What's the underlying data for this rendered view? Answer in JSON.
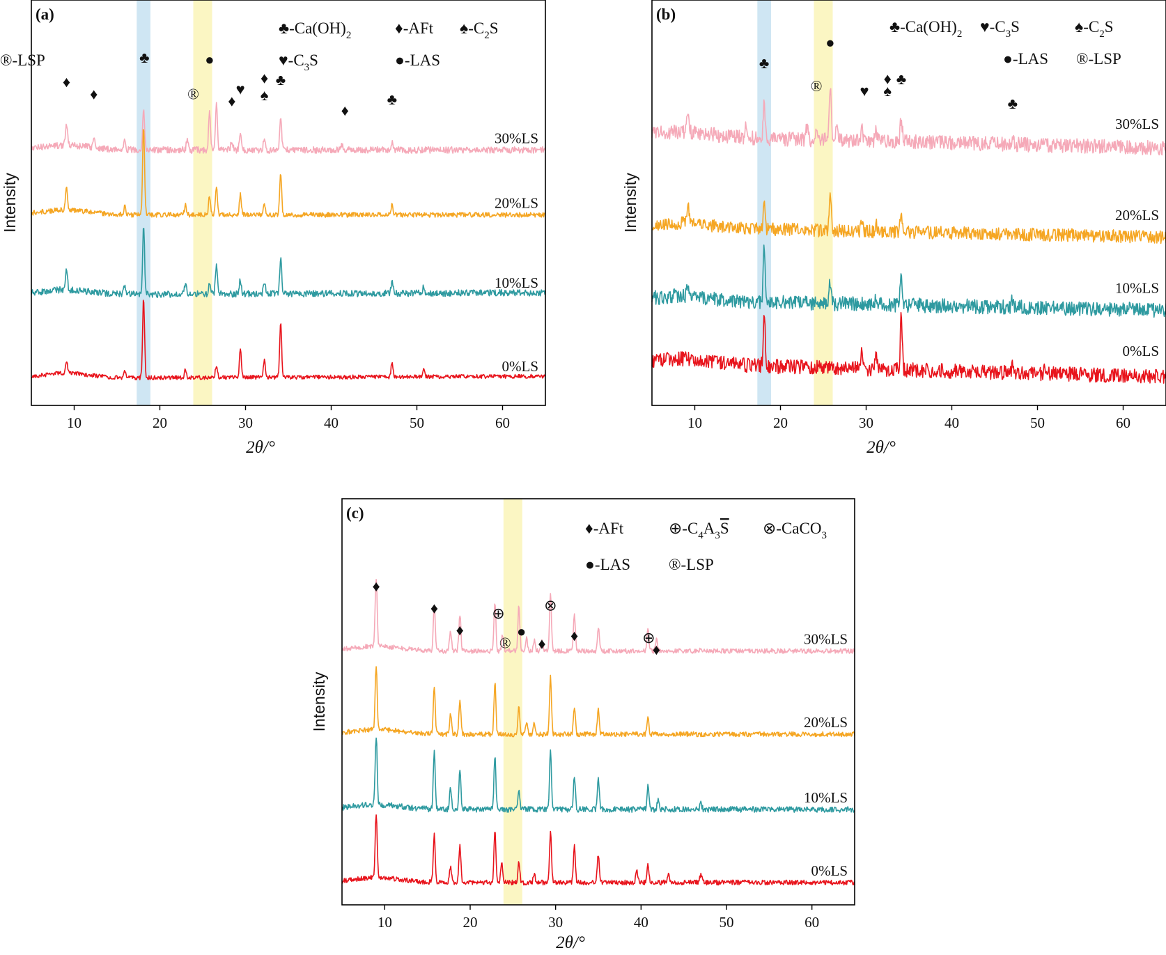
{
  "chart_data": [
    {
      "type": "line",
      "panel_label": "(a)",
      "xlabel": "2θ/°",
      "ylabel": "Intensity",
      "xlim": [
        5,
        65
      ],
      "x_ticks": [
        "10",
        "20",
        "30",
        "40",
        "50",
        "60"
      ],
      "highlight_bands": [
        {
          "range": [
            17.3,
            18.9
          ],
          "color": "#cfe6f3"
        },
        {
          "range": [
            23.9,
            26.1
          ],
          "color": "#fbf6c3"
        }
      ],
      "legend": [
        {
          "symbol": "♣",
          "text": "-Ca(OH)",
          "sub": "2",
          "text2": ""
        },
        {
          "symbol": "♦",
          "text": "-AFt",
          "sub": "",
          "text2": ""
        },
        {
          "symbol": "♠",
          "text": "-C",
          "sub": "2",
          "text2": "S"
        },
        {
          "symbol": "♥",
          "text": "-C",
          "sub": "3",
          "text2": "S"
        },
        {
          "symbol": "●",
          "text": "-LAS",
          "sub": "",
          "text2": ""
        },
        {
          "symbol": "®",
          "text": "-LSP",
          "sub": "",
          "text2": ""
        }
      ],
      "series": [
        {
          "name": "30%LS",
          "color": "#f5a9b8",
          "baseline": 0.37,
          "end_offset": 0.0,
          "noise": 0.008,
          "peaks": [
            [
              9.1,
              0.05
            ],
            [
              12.3,
              0.025
            ],
            [
              15.9,
              0.03
            ],
            [
              18.1,
              0.1
            ],
            [
              23.2,
              0.025
            ],
            [
              25.8,
              0.09
            ],
            [
              26.6,
              0.11
            ],
            [
              28.4,
              0.025
            ],
            [
              29.4,
              0.04
            ],
            [
              32.2,
              0.03
            ],
            [
              34.1,
              0.08
            ],
            [
              41.3,
              0.015
            ],
            [
              47.1,
              0.02
            ]
          ]
        },
        {
          "name": "20%LS",
          "color": "#f5a623",
          "baseline": 0.53,
          "end_offset": 0.0,
          "noise": 0.006,
          "peaks": [
            [
              9.1,
              0.06
            ],
            [
              15.9,
              0.02
            ],
            [
              18.1,
              0.215
            ],
            [
              23.0,
              0.025
            ],
            [
              25.8,
              0.05
            ],
            [
              26.6,
              0.07
            ],
            [
              29.4,
              0.05
            ],
            [
              32.2,
              0.025
            ],
            [
              34.1,
              0.1
            ],
            [
              47.1,
              0.025
            ]
          ]
        },
        {
          "name": "10%LS",
          "color": "#2e9aa0",
          "baseline": 0.727,
          "end_offset": -0.005,
          "noise": 0.008,
          "peaks": [
            [
              9.1,
              0.05
            ],
            [
              15.9,
              0.02
            ],
            [
              18.1,
              0.17
            ],
            [
              23.0,
              0.025
            ],
            [
              25.8,
              0.03
            ],
            [
              26.6,
              0.07
            ],
            [
              29.4,
              0.035
            ],
            [
              32.2,
              0.03
            ],
            [
              34.1,
              0.09
            ],
            [
              47.1,
              0.03
            ],
            [
              50.8,
              0.015
            ]
          ]
        },
        {
          "name": "0%LS",
          "color": "#e8141c",
          "baseline": 0.933,
          "end_offset": -0.005,
          "noise": 0.005,
          "peaks": [
            [
              9.1,
              0.03
            ],
            [
              15.9,
              0.015
            ],
            [
              18.1,
              0.195
            ],
            [
              23.0,
              0.02
            ],
            [
              26.6,
              0.03
            ],
            [
              29.4,
              0.07
            ],
            [
              32.2,
              0.045
            ],
            [
              34.1,
              0.135
            ],
            [
              47.1,
              0.035
            ],
            [
              50.8,
              0.02
            ]
          ]
        }
      ],
      "annotations": [
        {
          "x": 9.1,
          "y": 0.215,
          "symbol": "♦"
        },
        {
          "x": 12.3,
          "y": 0.245,
          "symbol": "♦"
        },
        {
          "x": 18.2,
          "y": 0.155,
          "symbol": "♣"
        },
        {
          "x": 23.9,
          "y": 0.245,
          "symbol": "®"
        },
        {
          "x": 25.8,
          "y": 0.16,
          "symbol": "●"
        },
        {
          "x": 28.4,
          "y": 0.262,
          "symbol": "♦"
        },
        {
          "x": 29.4,
          "y": 0.233,
          "symbol": "♥"
        },
        {
          "x": 32.2,
          "y": 0.205,
          "symbol": "♦"
        },
        {
          "x": 32.2,
          "y": 0.247,
          "symbol": "♠"
        },
        {
          "x": 34.1,
          "y": 0.21,
          "symbol": "♣"
        },
        {
          "x": 41.6,
          "y": 0.285,
          "symbol": "♦"
        },
        {
          "x": 47.1,
          "y": 0.258,
          "symbol": "♣"
        }
      ]
    },
    {
      "type": "line",
      "panel_label": "(b)",
      "xlabel": "2θ/°",
      "ylabel": "Intensity",
      "xlim": [
        5,
        65
      ],
      "x_ticks": [
        "10",
        "20",
        "30",
        "40",
        "50",
        "60"
      ],
      "highlight_bands": [
        {
          "range": [
            17.3,
            18.9
          ],
          "color": "#cfe6f3"
        },
        {
          "range": [
            23.9,
            26.1
          ],
          "color": "#fbf6c3"
        }
      ],
      "legend": [
        {
          "symbol": "♣",
          "text": "-Ca(OH)",
          "sub": "2",
          "text2": ""
        },
        {
          "symbol": "♥",
          "text": "-C",
          "sub": "3",
          "text2": "S"
        },
        {
          "symbol": "♠",
          "text": "-C",
          "sub": "2",
          "text2": "S"
        },
        {
          "symbol": "●",
          "text": "-LAS",
          "sub": "",
          "text2": ""
        },
        {
          "symbol": "®",
          "text": "-LSP",
          "sub": "",
          "text2": ""
        }
      ],
      "series": [
        {
          "name": "30%LS",
          "color": "#f5a9b8",
          "baseline": 0.335,
          "end_offset": 0.03,
          "noise": 0.018,
          "peaks": [
            [
              9.2,
              0.05
            ],
            [
              16.0,
              0.03
            ],
            [
              18.1,
              0.09
            ],
            [
              23.1,
              0.03
            ],
            [
              24.2,
              0.035
            ],
            [
              25.8,
              0.14
            ],
            [
              26.6,
              0.04
            ],
            [
              29.5,
              0.03
            ],
            [
              31.2,
              0.025
            ],
            [
              34.1,
              0.06
            ],
            [
              47.1,
              0.015
            ]
          ]
        },
        {
          "name": "20%LS",
          "color": "#f5a623",
          "baseline": 0.56,
          "end_offset": 0.025,
          "noise": 0.016,
          "peaks": [
            [
              9.2,
              0.04
            ],
            [
              18.1,
              0.075
            ],
            [
              25.8,
              0.105
            ],
            [
              29.5,
              0.02
            ],
            [
              31.2,
              0.02
            ],
            [
              34.1,
              0.05
            ]
          ]
        },
        {
          "name": "10%LS",
          "color": "#2e9aa0",
          "baseline": 0.74,
          "end_offset": 0.025,
          "noise": 0.018,
          "peaks": [
            [
              9.2,
              0.03
            ],
            [
              18.1,
              0.135
            ],
            [
              25.8,
              0.05
            ],
            [
              31.2,
              0.02
            ],
            [
              34.1,
              0.075
            ],
            [
              47.1,
              0.02
            ]
          ]
        },
        {
          "name": "0%LS",
          "color": "#e8141c",
          "baseline": 0.895,
          "end_offset": 0.035,
          "noise": 0.018,
          "peaks": [
            [
              18.1,
              0.135
            ],
            [
              23.1,
              0.02
            ],
            [
              29.5,
              0.04
            ],
            [
              31.2,
              0.035
            ],
            [
              34.1,
              0.13
            ],
            [
              47.1,
              0.02
            ],
            [
              50.8,
              0.015
            ]
          ]
        }
      ],
      "annotations": [
        {
          "x": 18.1,
          "y": 0.168,
          "symbol": "♣"
        },
        {
          "x": 24.2,
          "y": 0.225,
          "symbol": "®"
        },
        {
          "x": 25.8,
          "y": 0.118,
          "symbol": "●"
        },
        {
          "x": 29.8,
          "y": 0.237,
          "symbol": "♥"
        },
        {
          "x": 32.5,
          "y": 0.207,
          "symbol": "♦"
        },
        {
          "x": 32.5,
          "y": 0.237,
          "symbol": "♠"
        },
        {
          "x": 34.1,
          "y": 0.208,
          "symbol": "♣"
        },
        {
          "x": 47.1,
          "y": 0.268,
          "symbol": "♣"
        }
      ]
    },
    {
      "type": "line",
      "panel_label": "(c)",
      "xlabel": "2θ/°",
      "ylabel": "Intensity",
      "xlim": [
        5,
        65
      ],
      "x_ticks": [
        "10",
        "20",
        "30",
        "40",
        "50",
        "60"
      ],
      "highlight_bands": [
        {
          "range": [
            23.9,
            26.1
          ],
          "color": "#fbf6c3"
        }
      ],
      "legend": [
        {
          "symbol": "♦",
          "text": "-AFt",
          "sub": "",
          "text2": ""
        },
        {
          "symbol": "⊕",
          "text": "-C",
          "sub": "4",
          "text2": "A",
          "sub2": "3",
          "text3": "S",
          "overline": true
        },
        {
          "symbol": "⊗",
          "text": "-CaCO",
          "sub": "3",
          "text2": ""
        },
        {
          "symbol": "●",
          "text": "-LAS",
          "sub": "",
          "text2": ""
        },
        {
          "symbol": "®",
          "text": "-LSP",
          "sub": "",
          "text2": ""
        }
      ],
      "series": [
        {
          "name": "30%LS",
          "color": "#f5a9b8",
          "baseline": 0.375,
          "end_offset": 0.0,
          "noise": 0.006,
          "peaks": [
            [
              9.0,
              0.17
            ],
            [
              15.8,
              0.11
            ],
            [
              17.7,
              0.05
            ],
            [
              18.8,
              0.09
            ],
            [
              22.9,
              0.12
            ],
            [
              23.8,
              0.04
            ],
            [
              25.7,
              0.11
            ],
            [
              26.6,
              0.03
            ],
            [
              27.5,
              0.025
            ],
            [
              28.4,
              0.03
            ],
            [
              29.4,
              0.14
            ],
            [
              32.2,
              0.09
            ],
            [
              35.0,
              0.06
            ],
            [
              40.8,
              0.055
            ],
            [
              41.8,
              0.03
            ],
            [
              47.0,
              0.01
            ]
          ]
        },
        {
          "name": "20%LS",
          "color": "#f5a623",
          "baseline": 0.58,
          "end_offset": 0.0,
          "noise": 0.006,
          "peaks": [
            [
              9.0,
              0.16
            ],
            [
              15.8,
              0.12
            ],
            [
              17.7,
              0.05
            ],
            [
              18.8,
              0.085
            ],
            [
              22.9,
              0.125
            ],
            [
              25.7,
              0.07
            ],
            [
              26.6,
              0.03
            ],
            [
              27.5,
              0.025
            ],
            [
              29.4,
              0.14
            ],
            [
              32.2,
              0.07
            ],
            [
              35.0,
              0.065
            ],
            [
              40.8,
              0.04
            ]
          ]
        },
        {
          "name": "10%LS",
          "color": "#2e9aa0",
          "baseline": 0.765,
          "end_offset": 0.0,
          "noise": 0.007,
          "peaks": [
            [
              9.0,
              0.17
            ],
            [
              15.8,
              0.14
            ],
            [
              17.7,
              0.05
            ],
            [
              18.8,
              0.095
            ],
            [
              22.9,
              0.13
            ],
            [
              25.7,
              0.05
            ],
            [
              29.4,
              0.15
            ],
            [
              32.2,
              0.08
            ],
            [
              35.0,
              0.075
            ],
            [
              40.8,
              0.055
            ],
            [
              42.0,
              0.025
            ],
            [
              47.0,
              0.015
            ]
          ]
        },
        {
          "name": "0%LS",
          "color": "#e8141c",
          "baseline": 0.945,
          "end_offset": 0.0,
          "noise": 0.006,
          "peaks": [
            [
              9.0,
              0.16
            ],
            [
              15.8,
              0.12
            ],
            [
              17.7,
              0.04
            ],
            [
              18.8,
              0.09
            ],
            [
              22.9,
              0.13
            ],
            [
              23.7,
              0.05
            ],
            [
              25.7,
              0.05
            ],
            [
              27.5,
              0.02
            ],
            [
              29.4,
              0.125
            ],
            [
              32.2,
              0.09
            ],
            [
              35.0,
              0.07
            ],
            [
              39.5,
              0.03
            ],
            [
              40.8,
              0.05
            ],
            [
              43.2,
              0.02
            ],
            [
              47.0,
              0.02
            ]
          ]
        }
      ],
      "annotations": [
        {
          "x": 9.0,
          "y": 0.228,
          "symbol": "♦"
        },
        {
          "x": 15.8,
          "y": 0.282,
          "symbol": "♦"
        },
        {
          "x": 18.8,
          "y": 0.336,
          "symbol": "♦"
        },
        {
          "x": 23.3,
          "y": 0.295,
          "symbol": "⊕"
        },
        {
          "x": 24.1,
          "y": 0.368,
          "symbol": "®"
        },
        {
          "x": 26.0,
          "y": 0.34,
          "symbol": "●"
        },
        {
          "x": 28.4,
          "y": 0.37,
          "symbol": "♦"
        },
        {
          "x": 29.4,
          "y": 0.275,
          "symbol": "⊗"
        },
        {
          "x": 32.2,
          "y": 0.35,
          "symbol": "♦"
        },
        {
          "x": 40.9,
          "y": 0.355,
          "symbol": "⊕"
        },
        {
          "x": 41.8,
          "y": 0.384,
          "symbol": "♦"
        }
      ]
    }
  ]
}
